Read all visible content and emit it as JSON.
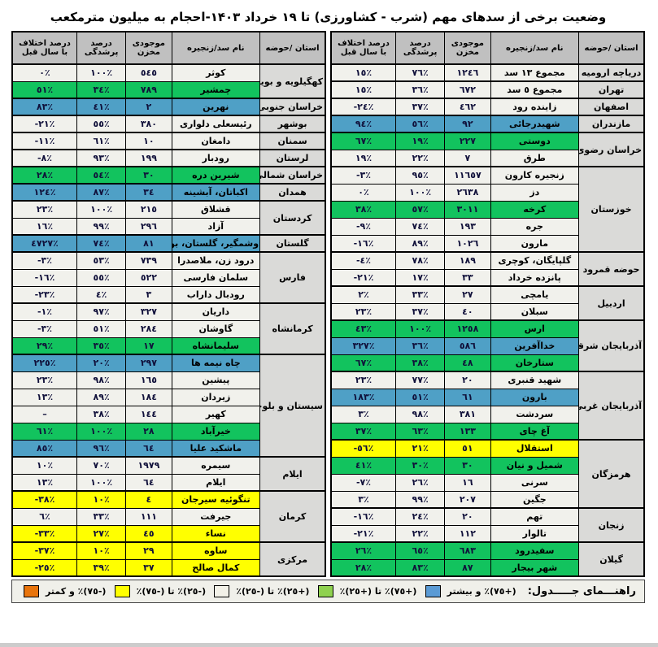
{
  "title": "وضعیت برخی از سدهای مهم (شرب - کشاورزی) تا ۱۹ خرداد ۱۴۰۳-احجام به میلیون مترمکعب",
  "columns": [
    "استان /حوضه",
    "نام سد/زنجیره",
    "موجودی مخزن",
    "درصد پرشدگی",
    "درصد اختلاف با سال قبل"
  ],
  "row_fields": [
    "dam_name",
    "reservoir_storage",
    "fill_percent",
    "diff_vs_last_year_percent",
    "color_code"
  ],
  "colors": {
    "row": {
      "white": "#f1f1ec",
      "green": "#12c35e",
      "blue": "#4fa0c6",
      "yellow": "#ffff00"
    },
    "header": "#c0c0c0",
    "province": "#dadad8"
  },
  "tables": [
    {
      "side": "right",
      "groups": [
        {
          "province": "دریاچه ارومیه",
          "dams": [
            [
              "مجموع ١٣ سد",
              "١٢٤٦",
              "٧٦٪",
              "١٥٪",
              "white"
            ]
          ]
        },
        {
          "province": "تهران",
          "dams": [
            [
              "مجموع ٥ سد",
              "٦٧٢",
              "٣٦٪",
              "١٥٪",
              "white"
            ]
          ]
        },
        {
          "province": "اصفهان",
          "dams": [
            [
              "زاینده رود",
              "٤٦٢",
              "٣٧٪",
              "-٢٤٪",
              "white"
            ]
          ]
        },
        {
          "province": "مازندران",
          "dams": [
            [
              "شهیدرجائی",
              "٩٢",
              "٥٦٪",
              "٩٤٪",
              "blue"
            ]
          ]
        },
        {
          "province": "خراسان رضوی",
          "dams": [
            [
              "دوستی",
              "٢٢٧",
              "١٩٪",
              "٦٧٪",
              "green"
            ],
            [
              "طرق",
              "٧",
              "٢٢٪",
              "١٩٪",
              "white"
            ]
          ]
        },
        {
          "province": "خوزستان",
          "dams": [
            [
              "زنجیره کارون",
              "١١٦٥٧",
              "٩٥٪",
              "-٣٪",
              "white"
            ],
            [
              "دز",
              "٢٦٣٨",
              "١٠٠٪",
              "٠٪",
              "white"
            ],
            [
              "کرخه",
              "٣٠١١",
              "٥٧٪",
              "٣٨٪",
              "green"
            ],
            [
              "جره",
              "١٩٣",
              "٧٤٪",
              "-٩٪",
              "white"
            ],
            [
              "مارون",
              "١٠٢٦",
              "٨٩٪",
              "-١٦٪",
              "white"
            ]
          ]
        },
        {
          "province": "حوضه قمرود",
          "dams": [
            [
              "گلپایگان، کوچری",
              "١٨٩",
              "٧٨٪",
              "-٤٪",
              "white"
            ],
            [
              "پانزده خرداد",
              "٣٣",
              "١٧٪",
              "-٢١٪",
              "white"
            ]
          ]
        },
        {
          "province": "اردبیل",
          "dams": [
            [
              "یامچی",
              "٢٧",
              "٣٣٪",
              "٢٪",
              "white"
            ],
            [
              "سبلان",
              "٤٠",
              "٣٧٪",
              "٢٣٪",
              "white"
            ]
          ]
        },
        {
          "province": "آذربایجان شرقی",
          "dams": [
            [
              "ارس",
              "١٢٥٨",
              "١٠٠٪",
              "٤٣٪",
              "green"
            ],
            [
              "خداآفرین",
              "٥٨٦",
              "٣٦٪",
              "٣٢٧٪",
              "blue"
            ],
            [
              "ستارخان",
              "٤٨",
              "٣٨٪",
              "٦٧٪",
              "green"
            ]
          ]
        },
        {
          "province": "آذربایجان غربی",
          "dams": [
            [
              "شهید قنبری",
              "٢٠",
              "٧٧٪",
              "٢٣٪",
              "white"
            ],
            [
              "بارون",
              "٦١",
              "٥١٪",
              "١٨٣٪",
              "blue"
            ],
            [
              "سردشت",
              "٣٨١",
              "٩٨٪",
              "٣٪",
              "white"
            ],
            [
              "آغ چای",
              "١٣٣",
              "٦٣٪",
              "٣٧٪",
              "green"
            ]
          ]
        },
        {
          "province": "هرمزگان",
          "dams": [
            [
              "استقلال",
              "٥١",
              "٢١٪",
              "-٥٦٪",
              "yellow"
            ],
            [
              "شمیل و نیان",
              "٣٠",
              "٣٠٪",
              "٤١٪",
              "green"
            ],
            [
              "سرنی",
              "١٦",
              "٢٦٪",
              "-٧٪",
              "white"
            ],
            [
              "جگین",
              "٢٠٧",
              "٩٩٪",
              "٣٪",
              "white"
            ]
          ]
        },
        {
          "province": "زنجان",
          "dams": [
            [
              "تهم",
              "٢٠",
              "٢٤٪",
              "-١٦٪",
              "white"
            ],
            [
              "تالوار",
              "١١٢",
              "٢٢٪",
              "-٢١٪",
              "white"
            ]
          ]
        },
        {
          "province": "گیلان",
          "dams": [
            [
              "سفیدرود",
              "٦٨٣",
              "٦٥٪",
              "٢٦٪",
              "green"
            ],
            [
              "شهر بیجار",
              "٨٧",
              "٨٣٪",
              "٢٨٪",
              "green"
            ]
          ]
        }
      ]
    },
    {
      "side": "left",
      "groups": [
        {
          "province": "کهگیلویه و بویراحمد",
          "dams": [
            [
              "کوثر",
              "٥٤٥",
              "١٠٠٪",
              "٠٪",
              "white"
            ],
            [
              "چمشیر",
              "٧٨٩",
              "٣٤٪",
              "٥١٪",
              "green"
            ]
          ]
        },
        {
          "province": "خراسان جنوبی",
          "dams": [
            [
              "نهرین",
              "٢",
              "٤١٪",
              "٨٣٪",
              "blue"
            ]
          ]
        },
        {
          "province": "بوشهر",
          "dams": [
            [
              "رئیسعلی دلواری",
              "٣٨٠",
              "٥٥٪",
              "-٢١٪",
              "white"
            ]
          ]
        },
        {
          "province": "سمنان",
          "dams": [
            [
              "دامغان",
              "١٠",
              "٦١٪",
              "-١١٪",
              "white"
            ]
          ]
        },
        {
          "province": "لرستان",
          "dams": [
            [
              "رودبار",
              "١٩٩",
              "٩٣٪",
              "-٨٪",
              "white"
            ]
          ]
        },
        {
          "province": "خراسان شمالی",
          "dams": [
            [
              "شیرین دره",
              "٣٠",
              "٥٤٪",
              "٢٨٪",
              "green"
            ]
          ]
        },
        {
          "province": "همدان",
          "dams": [
            [
              "اکباتان، آبشینه",
              "٣٤",
              "٨٧٪",
              "١٢٤٪",
              "blue"
            ]
          ]
        },
        {
          "province": "کردستان",
          "dams": [
            [
              "قشلاق",
              "٢١٥",
              "١٠٠٪",
              "٢٣٪",
              "white"
            ],
            [
              "آزاد",
              "٢٩٦",
              "٩٩٪",
              "١٦٪",
              "white"
            ]
          ]
        },
        {
          "province": "گلستان",
          "dams": [
            [
              "وشمگیر، گلستان، بوستان",
              "٨١",
              "٧٤٪",
              "٤٧٢٧٪",
              "blue"
            ]
          ]
        },
        {
          "province": "فارس",
          "dams": [
            [
              "درود زن، ملاصدرا",
              "٧٣٩",
              "٥٣٪",
              "-٣٪",
              "white"
            ],
            [
              "سلمان فارسی",
              "٥٢٢",
              "٥٥٪",
              "-١٦٪",
              "white"
            ],
            [
              "رودبال داراب",
              "٣",
              "٤٪",
              "-٢٣٪",
              "white"
            ]
          ]
        },
        {
          "province": "کرمانشاه",
          "dams": [
            [
              "داریان",
              "٣٢٧",
              "٩٧٪",
              "-١٪",
              "white"
            ],
            [
              "گاوشان",
              "٢٨٤",
              "٥١٪",
              "-٣٪",
              "white"
            ],
            [
              "سلیمانشاه",
              "١٧",
              "٣٥٪",
              "٢٩٪",
              "green"
            ]
          ]
        },
        {
          "province": "سیستان و بلوچستان",
          "dams": [
            [
              "چاه نیمه ها",
              "٢٩٧",
              "٢٠٪",
              "٢٢٥٪",
              "blue"
            ],
            [
              "پیشین",
              "١٦٥",
              "٩٨٪",
              "٢٣٪",
              "white"
            ],
            [
              "زیردان",
              "١٨٤",
              "٨٩٪",
              "١٣٪",
              "white"
            ],
            [
              "کهیر",
              "١٤٤",
              "٣٨٪",
              "–",
              "white"
            ],
            [
              "خیرآباد",
              "٢٨",
              "١٠٠٪",
              "٦١٪",
              "green"
            ],
            [
              "ماشکید علیا",
              "٦٤",
              "٩٦٪",
              "٨٥٪",
              "blue"
            ]
          ]
        },
        {
          "province": "ایلام",
          "dams": [
            [
              "سیمره",
              "١٩٧٩",
              "٧٠٪",
              "١٠٪",
              "white"
            ],
            [
              "ایلام",
              "٦٤",
              "١٠٠٪",
              "١٣٪",
              "white"
            ]
          ]
        },
        {
          "province": "کرمان",
          "dams": [
            [
              "تنگوئیه سیرجان",
              "٤",
              "١٠٪",
              "-٣٨٪",
              "yellow"
            ],
            [
              "جیرفت",
              "١١١",
              "٣٣٪",
              "٦٪",
              "white"
            ],
            [
              "نساء",
              "٤٥",
              "٢٧٪",
              "-٣٣٪",
              "yellow"
            ]
          ]
        },
        {
          "province": "مرکزی",
          "dams": [
            [
              "ساوه",
              "٢٩",
              "١٠٪",
              "-٣٧٪",
              "yellow"
            ],
            [
              "کمال صالح",
              "٣٧",
              "٣٩٪",
              "-٢٥٪",
              "yellow"
            ]
          ]
        }
      ]
    }
  ],
  "legend": {
    "label": "راهنـــمای جـــــدول:",
    "items": [
      {
        "text": "(+٧٥)٪ و بیشتر",
        "swatch_color": "#5b9bd5"
      },
      {
        "text": "(+٧٥)٪ تا (+٢٥)٪",
        "swatch_color": "#8fd14f"
      },
      {
        "text": "(+٢٥)٪ تا (-٢٥)٪",
        "swatch_color": "#f2f1e8"
      },
      {
        "text": "(-٢٥)٪ تا (-٧٥)٪",
        "swatch_color": "#ffff00"
      },
      {
        "text": "(-٧٥)٪ و کمتر",
        "swatch_color": "#e8740c"
      }
    ]
  }
}
